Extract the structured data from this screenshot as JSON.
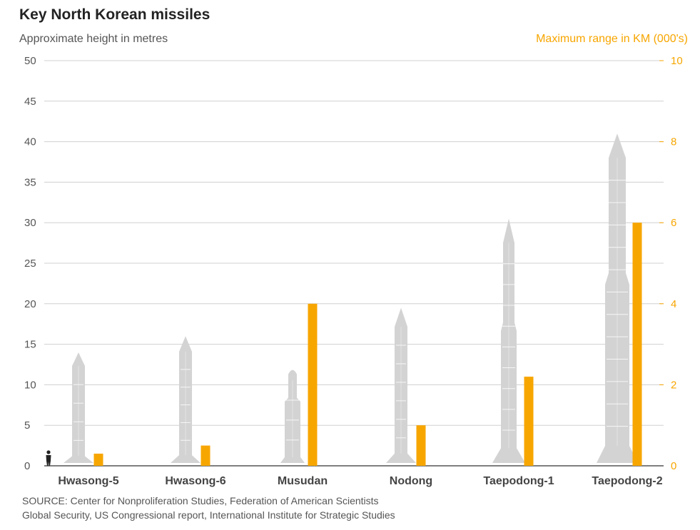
{
  "title": "Key North Korean missiles",
  "subtitle": "Approximate height in metres",
  "right_axis_label": "Maximum range in KM (000's)",
  "source": [
    "SOURCE: Center for Nonproliferation Studies, Federation of American Scientists",
    "Global Security, US Congressional report, International Institute for Strategic Studies"
  ],
  "colors": {
    "missile": "#d3d3d3",
    "missile_lines": "#ffffff",
    "range_bar": "#f7a600",
    "grid": "#d0d0d0",
    "axis_text": "#555555",
    "right_axis_text": "#f7a600",
    "person": "#222222"
  },
  "chart_data": {
    "type": "bar",
    "categories": [
      "Hwasong-5",
      "Hwasong-6",
      "Musudan",
      "Nodong",
      "Taepodong-1",
      "Taepodong-2"
    ],
    "series": [
      {
        "values": [
          14,
          16,
          12,
          19.5,
          30.5,
          41
        ]
      },
      {
        "values": [
          0.3,
          0.5,
          4,
          1,
          2.2,
          6
        ]
      }
    ],
    "left_axis": {
      "ylim": [
        0,
        50
      ],
      "ticks": [
        "0",
        "5",
        "10",
        "15",
        "20",
        "25",
        "30",
        "35",
        "40",
        "45",
        "50"
      ]
    },
    "right_axis": {
      "ylim": [
        0,
        10
      ],
      "ticks": [
        "0",
        "2",
        "4",
        "6",
        "8",
        "10"
      ]
    },
    "grid": true,
    "scale_reference": "person-icon"
  }
}
